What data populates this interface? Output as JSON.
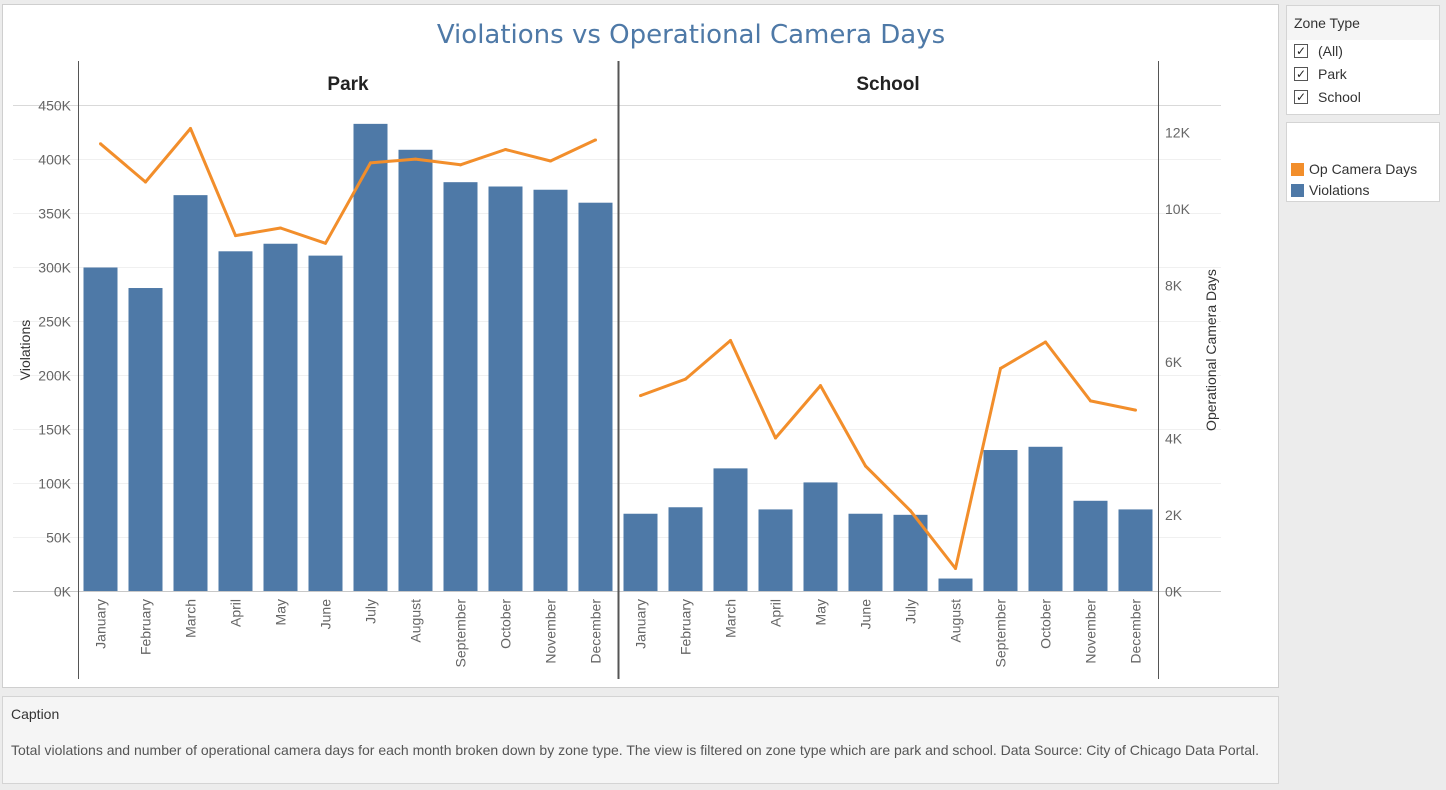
{
  "chart_data": {
    "type": "bar+line",
    "title": "Violations vs Operational Camera Days",
    "panels": [
      "Park",
      "School"
    ],
    "categories": [
      "January",
      "February",
      "March",
      "April",
      "May",
      "June",
      "July",
      "August",
      "September",
      "October",
      "November",
      "December"
    ],
    "series": [
      {
        "name": "Violations",
        "type": "bar",
        "axis": "left",
        "color": "#4e79a7",
        "values": {
          "Park": [
            300000,
            281000,
            367000,
            315000,
            322000,
            311000,
            433000,
            409000,
            379000,
            375000,
            372000,
            360000
          ],
          "School": [
            72000,
            78000,
            114000,
            76000,
            101000,
            72000,
            71000,
            12000,
            131000,
            134000,
            84000,
            76000
          ]
        }
      },
      {
        "name": "Op Camera Days",
        "type": "line",
        "axis": "right",
        "color": "#f28e2b",
        "values": {
          "Park": [
            11700,
            10700,
            12100,
            9300,
            9500,
            9100,
            11200,
            11300,
            11150,
            11550,
            11250,
            11800
          ],
          "School": [
            5120,
            5550,
            6560,
            4010,
            5380,
            3280,
            2110,
            600,
            5830,
            6520,
            4980,
            4740
          ]
        }
      }
    ],
    "ylabel": "Violations",
    "y2label": "Operational Camera Days",
    "ylim": [
      0,
      450000
    ],
    "y2lim": [
      0,
      12700
    ],
    "yticks": [
      0,
      50000,
      100000,
      150000,
      200000,
      250000,
      300000,
      350000,
      400000,
      450000
    ],
    "yticklabels": [
      "0K",
      "50K",
      "100K",
      "150K",
      "200K",
      "250K",
      "300K",
      "350K",
      "400K",
      "450K"
    ],
    "y2ticks": [
      0,
      2000,
      4000,
      6000,
      8000,
      10000,
      12000
    ],
    "y2ticklabels": [
      "0K",
      "2K",
      "4K",
      "6K",
      "8K",
      "10K",
      "12K"
    ],
    "grid": true
  },
  "filter": {
    "title": "Zone Type",
    "items": [
      {
        "label": "(All)",
        "checked": true
      },
      {
        "label": "Park",
        "checked": true
      },
      {
        "label": "School",
        "checked": true
      }
    ]
  },
  "legend": {
    "items": [
      {
        "label": "Op Camera Days",
        "color": "#f28e2b"
      },
      {
        "label": "Violations",
        "color": "#4e79a7"
      }
    ]
  },
  "caption": {
    "title": "Caption",
    "text": "Total violations and number of operational camera days for each month broken down by zone type.  The view is filtered on zone type which are park and school.  Data Source: City of Chicago Data Portal."
  },
  "colors": {
    "title": "#4e79a7",
    "bar": "#4e79a7",
    "line": "#f28e2b"
  }
}
